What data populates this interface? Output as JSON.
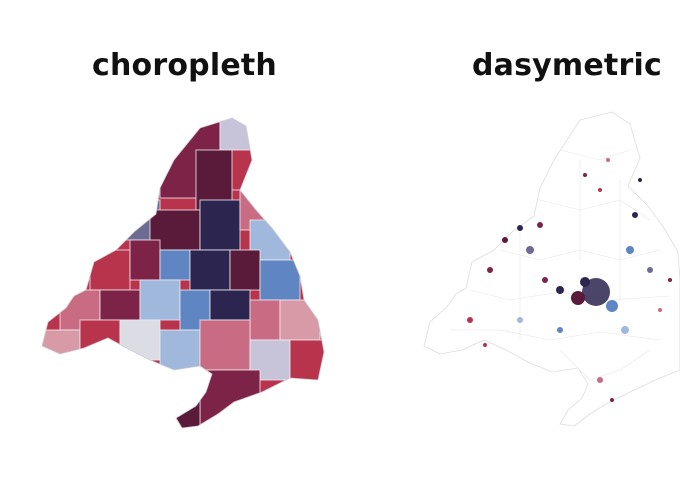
{
  "panels": {
    "left": {
      "title": "choropleth"
    },
    "right": {
      "title": "dasymetric"
    }
  },
  "colors": {
    "dark_maroon": "#5a1a3a",
    "maroon": "#7d2348",
    "red": "#b8344d",
    "rose": "#c96b82",
    "pink": "#d99aa7",
    "lavender": "#c7c3d8",
    "light_gray": "#dcdce4",
    "slate_purple": "#6d6a94",
    "navy": "#2b2550",
    "blue": "#5f86c2",
    "light_blue": "#9fb8dc",
    "outline": "#e2e2e2"
  }
}
